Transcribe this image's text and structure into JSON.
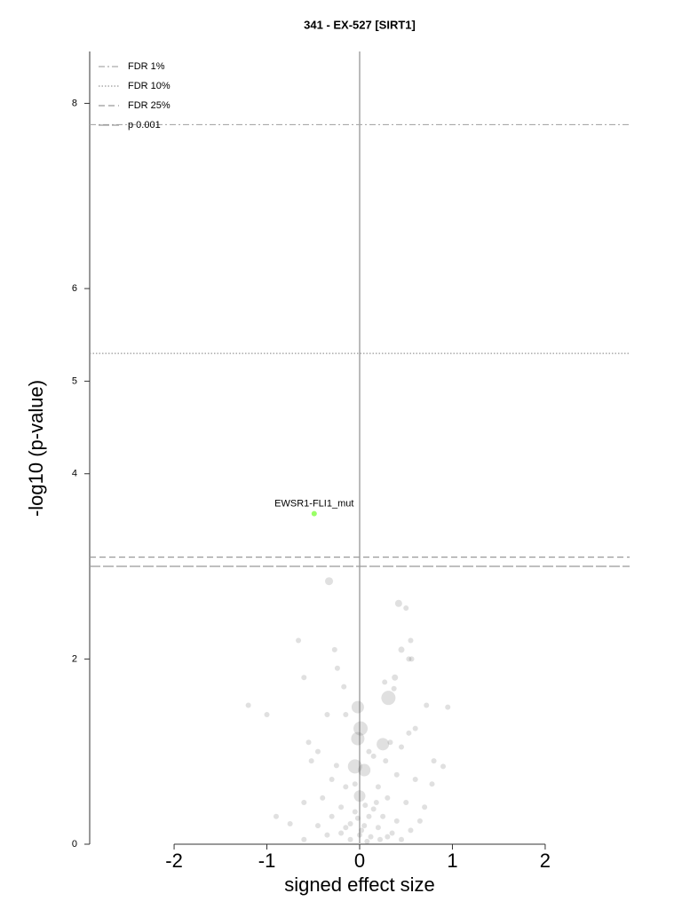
{
  "chart_data": {
    "type": "scatter",
    "title": "341 - EX-527 [SIRT1]",
    "x_label": "signed effect size",
    "y_label": "-log10 (p-value)",
    "xlim": [
      -2.91,
      2.91
    ],
    "ylim": [
      0,
      8.56
    ],
    "xticks": [
      -2,
      -1,
      0,
      1,
      2
    ],
    "yticks": [
      0,
      2,
      4,
      5,
      6,
      8
    ],
    "reference_x": 0,
    "legend": "upper left",
    "thresholds": [
      {
        "name": "FDR 1%",
        "value": 7.77,
        "dash": "7 3 2 3",
        "color": "#aaaaaa"
      },
      {
        "name": "FDR 10%",
        "value": 5.3,
        "dash": "1.5 2",
        "color": "#999999"
      },
      {
        "name": "FDR 25%",
        "value": 3.1,
        "dash": "7 4",
        "color": "#999999"
      },
      {
        "name": "p 0.001",
        "value": 3.0,
        "dash": "12 3",
        "color": "#999999"
      }
    ],
    "points": {
      "color": "#555555",
      "x": [
        -0.33,
        0.42,
        0.5,
        -0.66,
        -0.27,
        0.45,
        0.55,
        0.53,
        0.56,
        -0.24,
        -0.6,
        0.27,
        0.38,
        -0.17,
        0.37,
        0.31,
        -1.2,
        -1.0,
        0.72,
        0.95,
        -0.15,
        -0.35,
        -0.02,
        0.01,
        -0.02,
        0.25,
        0.53,
        0.6,
        -0.55,
        -0.45,
        0.1,
        0.8,
        0.9,
        -0.05,
        0.05,
        -0.52,
        0.4,
        0.6,
        0.78,
        -0.3,
        -0.15,
        0.2,
        0.0,
        -0.4,
        0.3,
        0.5,
        -0.6,
        0.7,
        -0.2,
        0.15,
        -0.05,
        0.1,
        0.25,
        -0.3,
        0.4,
        -0.1,
        0.05,
        0.2,
        -0.45,
        0.55,
        -0.2,
        0.0,
        0.12,
        0.3,
        -0.1,
        0.08,
        -0.6,
        0.45,
        -0.9,
        -0.75,
        0.65,
        0.35,
        -0.35,
        0.18,
        -0.05,
        0.28,
        0.15,
        -0.25,
        0.33,
        0.45,
        0.02,
        -0.02,
        0.06,
        0.22,
        -0.15
      ],
      "y": [
        2.84,
        2.6,
        2.55,
        2.2,
        2.1,
        2.1,
        2.2,
        2.0,
        2.0,
        1.9,
        1.8,
        1.75,
        1.8,
        1.7,
        1.68,
        1.58,
        1.5,
        1.4,
        1.5,
        1.48,
        1.4,
        1.4,
        1.48,
        1.25,
        1.14,
        1.08,
        1.2,
        1.25,
        1.1,
        1.0,
        1.0,
        0.9,
        0.84,
        0.84,
        0.8,
        0.9,
        0.75,
        0.7,
        0.65,
        0.7,
        0.62,
        0.62,
        0.52,
        0.5,
        0.5,
        0.45,
        0.45,
        0.4,
        0.4,
        0.38,
        0.35,
        0.3,
        0.3,
        0.3,
        0.25,
        0.22,
        0.2,
        0.18,
        0.2,
        0.15,
        0.12,
        0.1,
        0.08,
        0.08,
        0.05,
        0.03,
        0.05,
        0.05,
        0.3,
        0.22,
        0.25,
        0.12,
        0.1,
        0.45,
        0.65,
        0.9,
        0.95,
        0.85,
        1.1,
        1.05,
        0.15,
        0.28,
        0.42,
        0.05,
        0.18
      ],
      "sizes": [
        4.5,
        4,
        3,
        3,
        3,
        3.5,
        3,
        3,
        3,
        3,
        3,
        3,
        3.5,
        3,
        3,
        8,
        3,
        3,
        3,
        3,
        3,
        3,
        7,
        8,
        7.5,
        7,
        3,
        3,
        3,
        3,
        3,
        3,
        3,
        8,
        7,
        3,
        3,
        3,
        3,
        3,
        3,
        3,
        6.5,
        3,
        3,
        3,
        3,
        3,
        3,
        3,
        3,
        3,
        3,
        3,
        3,
        3,
        3,
        3,
        3,
        3,
        3,
        3,
        3,
        3,
        3,
        3,
        3,
        3,
        3,
        3,
        3,
        3,
        3,
        3,
        3,
        3,
        3,
        3,
        3,
        3,
        3,
        3,
        3,
        3,
        3
      ]
    },
    "highlight": {
      "label": "EWSR1-FLI1_mut",
      "x": -0.49,
      "y": 3.57,
      "color": "#99ff66"
    }
  }
}
